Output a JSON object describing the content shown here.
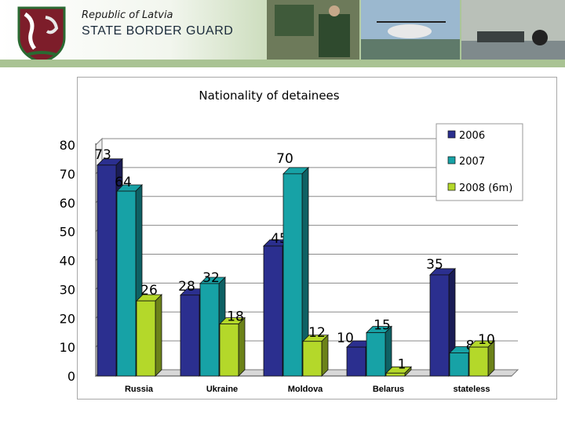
{
  "header": {
    "country": "Republic of Latvia",
    "agency": "STATE BORDER GUARD"
  },
  "colors": {
    "s2006": "#2b2f8f",
    "s2007": "#17a2a6",
    "s2008": "#b4d82a",
    "floor": "#d8d8d8"
  },
  "chart_data": {
    "type": "bar",
    "title": "Nationality of detainees",
    "categories": [
      "Russia",
      "Ukraine",
      "Moldova",
      "Belarus",
      "stateless"
    ],
    "series": [
      {
        "name": "2006",
        "values": [
          73,
          28,
          45,
          10,
          35
        ]
      },
      {
        "name": "2007",
        "values": [
          64,
          32,
          70,
          15,
          8
        ]
      },
      {
        "name": "2008 (6m)",
        "values": [
          26,
          18,
          12,
          1,
          10
        ]
      }
    ],
    "ylim": [
      0,
      80
    ],
    "yticks": [
      "0",
      "10",
      "20",
      "30",
      "40",
      "50",
      "60",
      "70",
      "80"
    ],
    "grid": true,
    "legend": "top-right",
    "data_labels": true
  }
}
